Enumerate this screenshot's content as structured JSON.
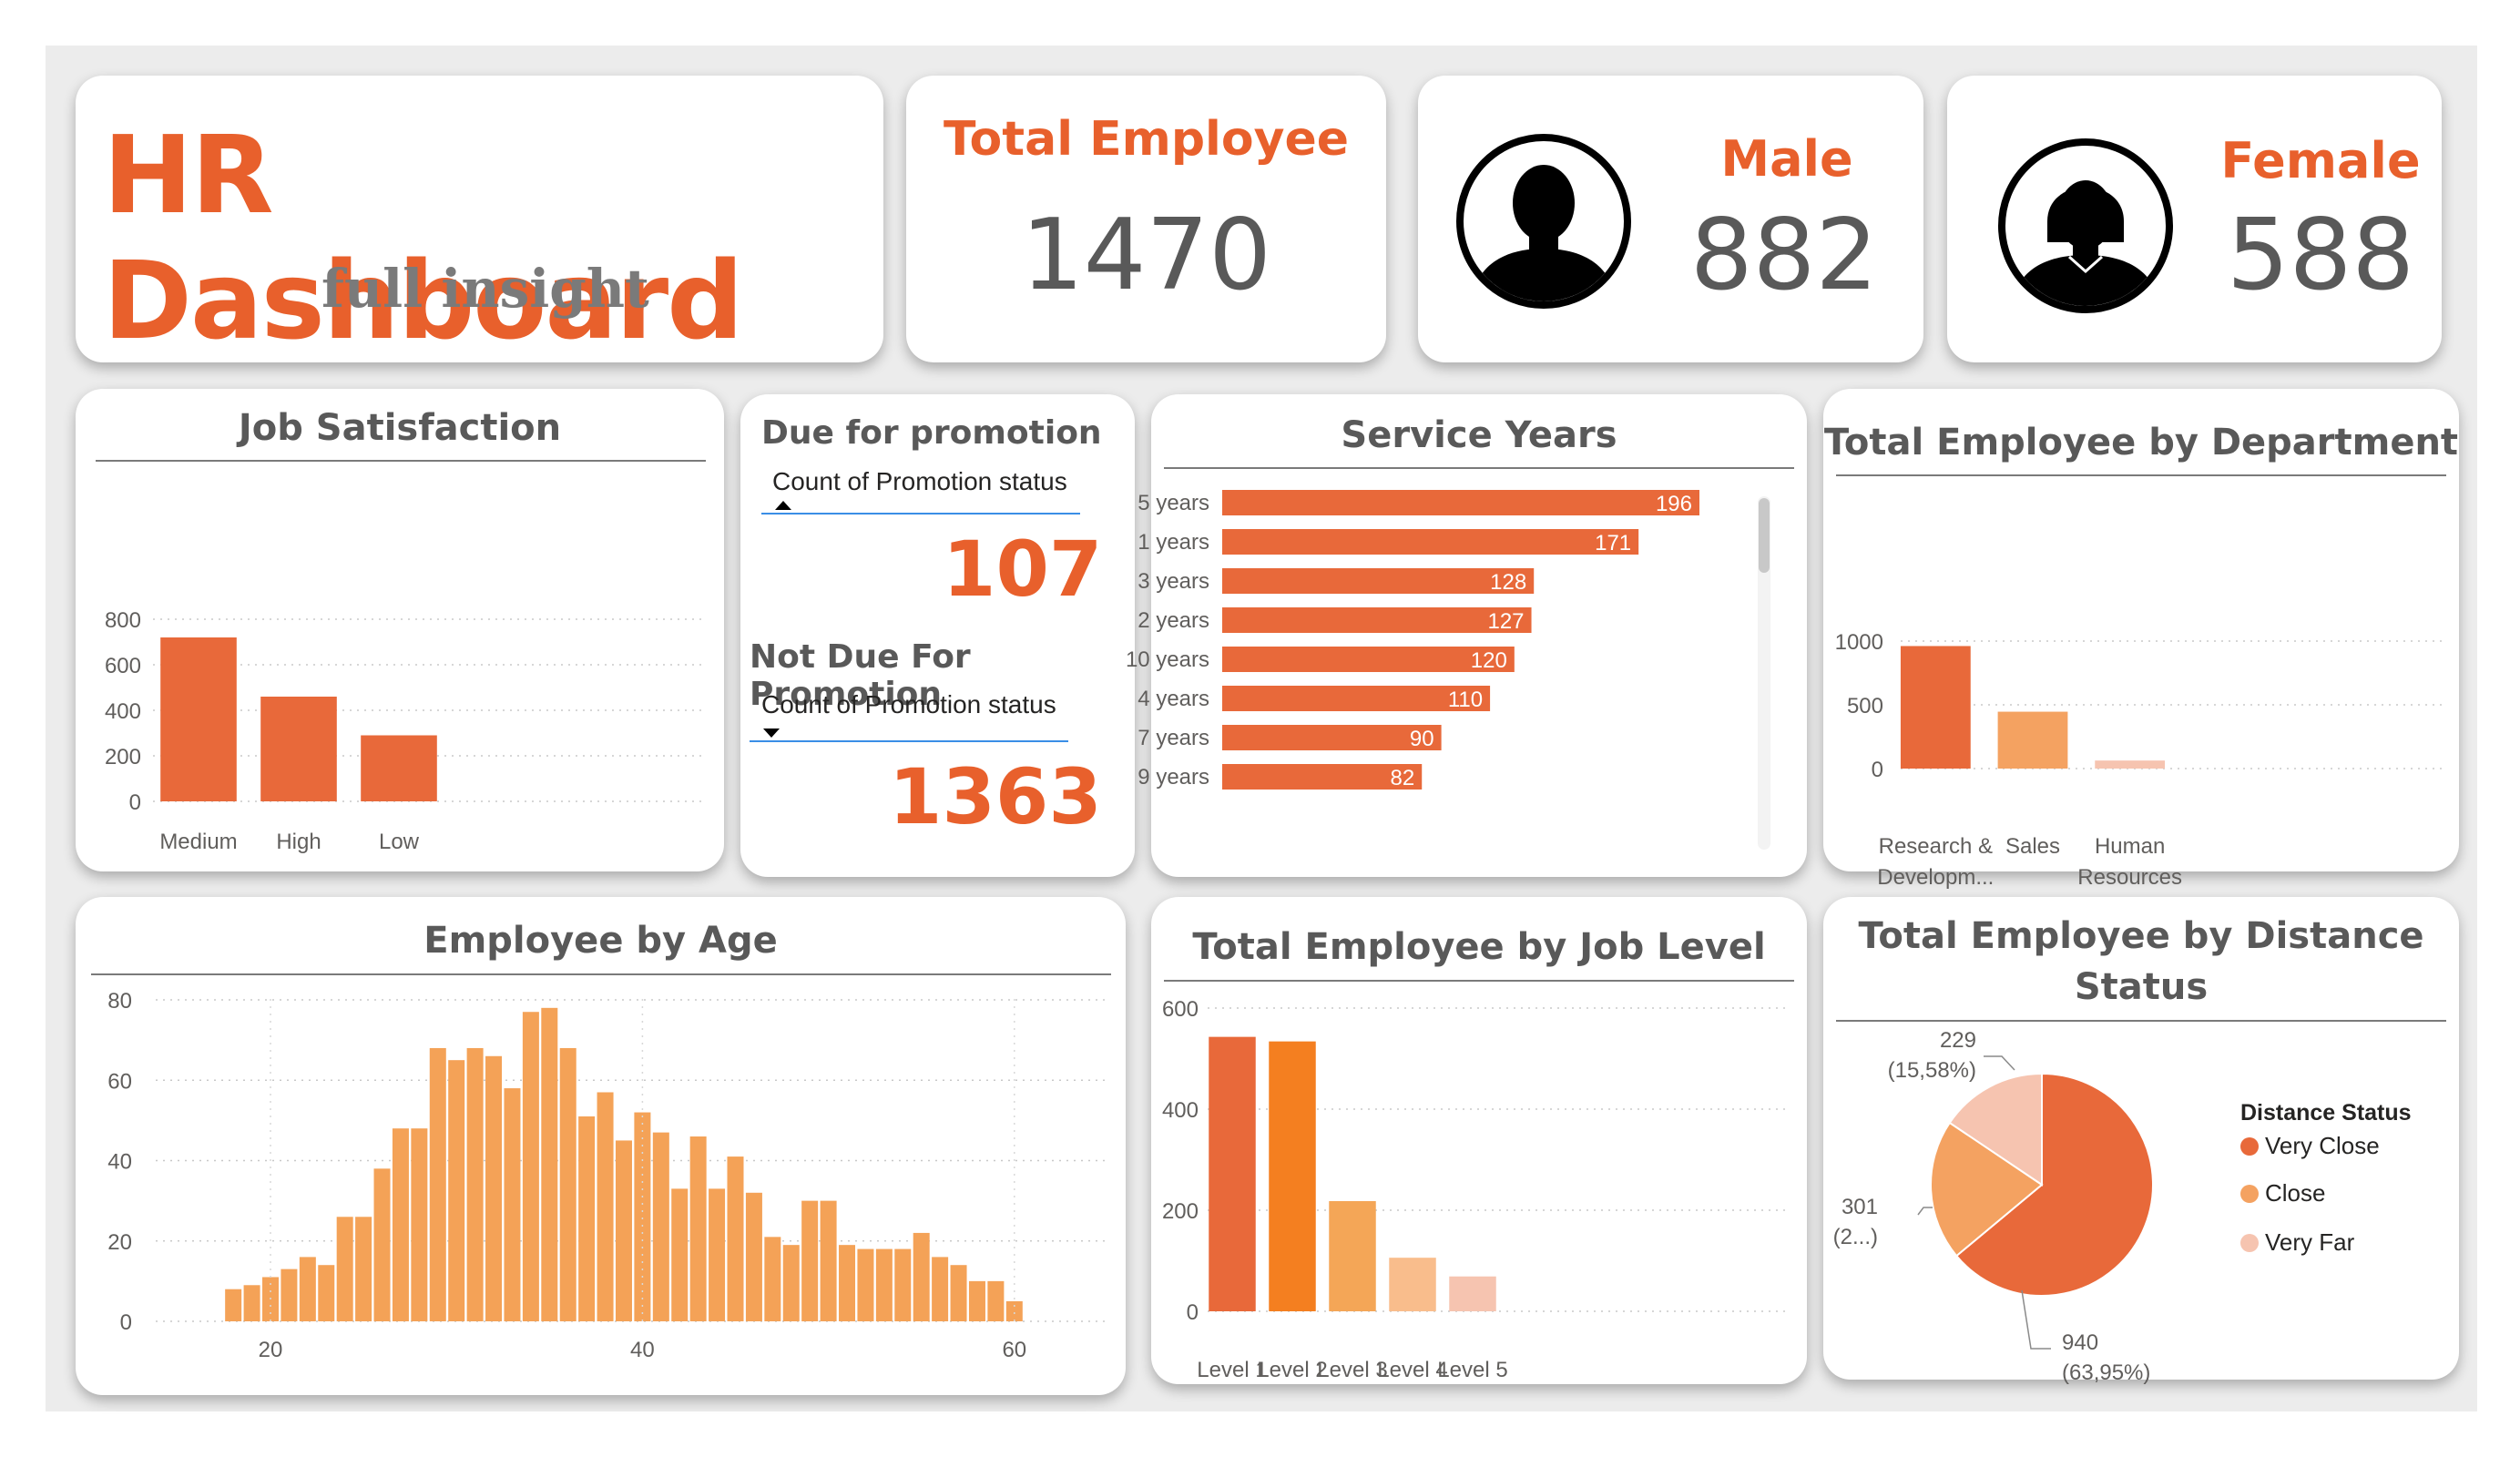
{
  "header": {
    "title": "HR Dashboard",
    "subtitle": "full insight"
  },
  "kpis": {
    "total": {
      "label": "Total Employee",
      "value": "1470"
    },
    "male": {
      "label": "Male",
      "value": "882",
      "icon": "male-avatar-icon"
    },
    "female": {
      "label": "Female",
      "value": "588",
      "icon": "female-avatar-icon"
    }
  },
  "promotion": {
    "due_title": "Due for promotion",
    "due_field": "Count of Promotion status",
    "due_value": "107",
    "not_due_title": "Not Due For Promotion",
    "not_due_field": "Count of Promotion status",
    "not_due_value": "1363"
  },
  "colors": {
    "accent": "#e8602c",
    "bar_orange": "#e8693a",
    "bar_light": "#f4a261",
    "bar_pale": "#f6c4b0",
    "text_gray": "#595959"
  },
  "chart_data": [
    {
      "id": "job_satisfaction",
      "type": "bar",
      "title": "Job Satisfaction",
      "categories": [
        "Medium",
        "High",
        "Low"
      ],
      "values": [
        720,
        460,
        290
      ],
      "yticks": [
        0,
        200,
        400,
        600,
        800
      ],
      "ylim": [
        0,
        800
      ],
      "grid": true
    },
    {
      "id": "service_years",
      "type": "bar",
      "orientation": "horizontal",
      "title": "Service Years",
      "categories": [
        "5 years",
        "1 years",
        "3 years",
        "2 years",
        "10 years",
        "4 years",
        "7 years",
        "9 years"
      ],
      "values": [
        196,
        171,
        128,
        127,
        120,
        110,
        90,
        82
      ],
      "data_labels": [
        "196",
        "171",
        "128",
        "127",
        "120",
        "110",
        "90",
        "82"
      ]
    },
    {
      "id": "department",
      "type": "bar",
      "title": "Total Employee by Department",
      "categories": [
        "Research & Developm...",
        "Sales",
        "Human Resources"
      ],
      "category_lines": [
        [
          "Research &",
          "Developm..."
        ],
        [
          "Sales"
        ],
        [
          "Human",
          "Resources"
        ]
      ],
      "values": [
        961,
        446,
        63
      ],
      "colors": [
        "#e8693a",
        "#f4a261",
        "#f6c4b0"
      ],
      "yticks": [
        0,
        500,
        1000
      ],
      "ylim": [
        0,
        1000
      ],
      "grid": true
    },
    {
      "id": "age",
      "type": "bar",
      "title": "Employee by Age",
      "x": [
        18,
        19,
        20,
        21,
        22,
        23,
        24,
        25,
        26,
        27,
        28,
        29,
        30,
        31,
        32,
        33,
        34,
        35,
        36,
        37,
        38,
        39,
        40,
        41,
        42,
        43,
        44,
        45,
        46,
        47,
        48,
        49,
        50,
        51,
        52,
        53,
        54,
        55,
        56,
        57,
        58,
        59,
        60
      ],
      "values": [
        8,
        9,
        11,
        13,
        16,
        14,
        26,
        26,
        38,
        48,
        48,
        68,
        65,
        68,
        66,
        58,
        77,
        78,
        68,
        51,
        57,
        45,
        52,
        47,
        33,
        46,
        33,
        41,
        32,
        21,
        19,
        30,
        30,
        19,
        18,
        18,
        18,
        22,
        16,
        14,
        10,
        10,
        5
      ],
      "xticks": [
        20,
        40,
        60
      ],
      "yticks": [
        0,
        20,
        40,
        60,
        80
      ],
      "ylim": [
        0,
        80
      ],
      "grid": true
    },
    {
      "id": "job_level",
      "type": "bar",
      "title": "Total Employee by Job Level",
      "categories": [
        "Level 1",
        "Level 2",
        "Level 3",
        "Level 4",
        "Level 5"
      ],
      "values": [
        543,
        534,
        218,
        106,
        69
      ],
      "colors": [
        "#e8693a",
        "#f47f20",
        "#f4a657",
        "#f9bd8c",
        "#f6c4b0"
      ],
      "yticks": [
        0,
        200,
        400,
        600
      ],
      "ylim": [
        0,
        600
      ],
      "grid": true
    },
    {
      "id": "distance",
      "type": "pie",
      "title": "Total Employee by Distance Status",
      "title_lines": [
        "Total Employee by Distance",
        "Status"
      ],
      "legend_title": "Distance Status",
      "categories": [
        "Very Close",
        "Close",
        "Very Far"
      ],
      "values": [
        940,
        301,
        229
      ],
      "data_labels": [
        [
          "940",
          "(63,95%)"
        ],
        [
          "301",
          "(2...)"
        ],
        [
          "229",
          "(15,58%)"
        ]
      ],
      "colors": [
        "#e8693a",
        "#f4a261",
        "#f6c4b0"
      ],
      "legend_position": "right"
    }
  ]
}
